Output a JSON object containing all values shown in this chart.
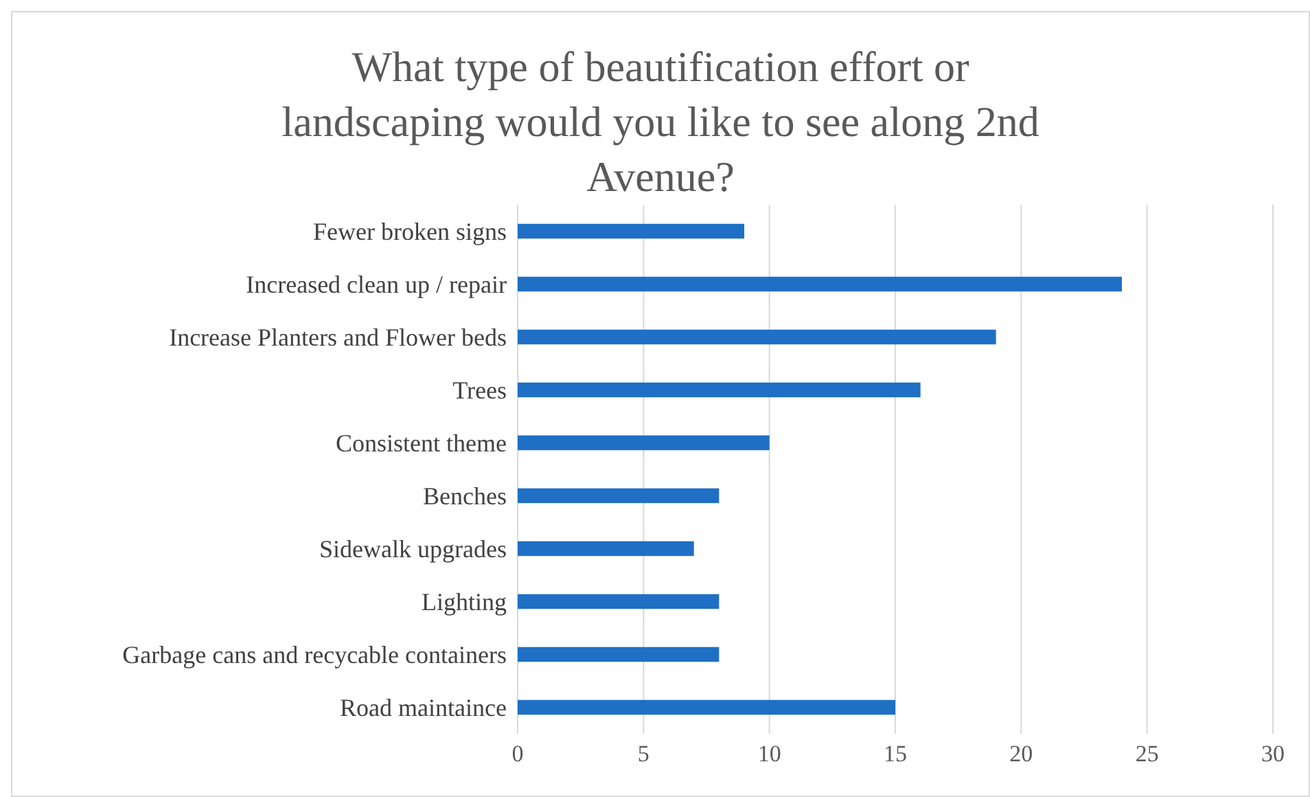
{
  "chart_data": {
    "type": "bar",
    "orientation": "horizontal",
    "title": "What type of beautification effort or landscaping would you like to see along 2nd Avenue?",
    "categories": [
      "Fewer broken signs",
      "Increased clean up / repair",
      "Increase Planters and Flower beds",
      "Trees",
      "Consistent theme",
      "Benches",
      "Sidewalk upgrades",
      "Lighting",
      "Garbage cans and recycable containers",
      "Road maintaince"
    ],
    "values": [
      9,
      24,
      19,
      16,
      10,
      8,
      7,
      8,
      8,
      15
    ],
    "color": "#1f6fc5",
    "xlim": [
      0,
      30
    ],
    "xticks": [
      0,
      5,
      10,
      15,
      20,
      25,
      30
    ],
    "grid": "x"
  }
}
